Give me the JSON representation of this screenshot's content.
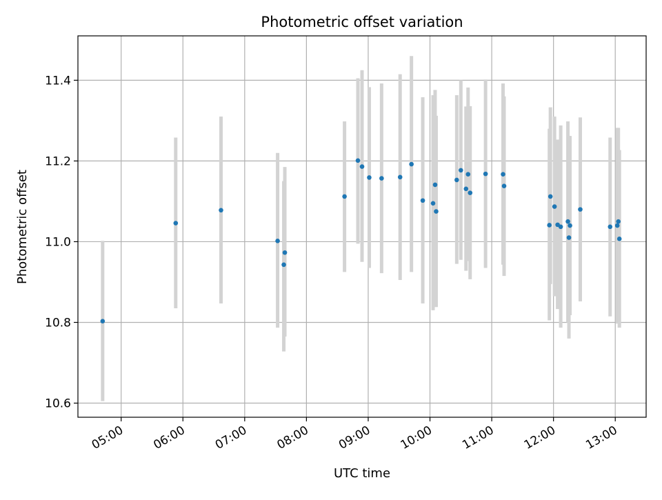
{
  "chart_data": {
    "type": "scatter",
    "title": "Photometric offset variation",
    "xlabel": "UTC time",
    "ylabel": "Photometric offset",
    "x_tick_labels": [
      "05:00",
      "06:00",
      "07:00",
      "08:00",
      "09:00",
      "10:00",
      "11:00",
      "12:00",
      "13:00"
    ],
    "x_tick_hours": [
      5,
      6,
      7,
      8,
      9,
      10,
      11,
      12,
      13
    ],
    "xlim_hours": [
      4.3,
      13.5
    ],
    "y_tick_labels": [
      "10.6",
      "10.8",
      "11.0",
      "11.2",
      "11.4"
    ],
    "y_ticks": [
      10.6,
      10.8,
      11.0,
      11.2,
      11.4
    ],
    "ylim": [
      10.565,
      11.51
    ],
    "grid": true,
    "legend": "none",
    "series": [
      {
        "marker_color": "#1f77b4",
        "errorbar_color": "#d3d3d3",
        "points": [
          {
            "time": "04:42",
            "y": 10.803,
            "lo": 10.605,
            "hi": 11.002
          },
          {
            "time": "05:53",
            "y": 11.046,
            "lo": 10.835,
            "hi": 11.258
          },
          {
            "time": "06:37",
            "y": 11.078,
            "lo": 10.847,
            "hi": 11.31
          },
          {
            "time": "07:32",
            "y": 11.002,
            "lo": 10.787,
            "hi": 11.22
          },
          {
            "time": "07:38",
            "y": 10.943,
            "lo": 10.728,
            "hi": 11.15
          },
          {
            "time": "07:39",
            "y": 10.973,
            "lo": 10.765,
            "hi": 11.185
          },
          {
            "time": "08:37",
            "y": 11.112,
            "lo": 10.925,
            "hi": 11.298
          },
          {
            "time": "08:50",
            "y": 11.201,
            "lo": 10.995,
            "hi": 11.405
          },
          {
            "time": "08:54",
            "y": 11.186,
            "lo": 10.95,
            "hi": 11.425
          },
          {
            "time": "09:01",
            "y": 11.159,
            "lo": 10.935,
            "hi": 11.383
          },
          {
            "time": "09:13",
            "y": 11.157,
            "lo": 10.922,
            "hi": 11.392
          },
          {
            "time": "09:31",
            "y": 11.16,
            "lo": 10.905,
            "hi": 11.415
          },
          {
            "time": "09:42",
            "y": 11.192,
            "lo": 10.925,
            "hi": 11.46
          },
          {
            "time": "09:53",
            "y": 11.102,
            "lo": 10.847,
            "hi": 11.358
          },
          {
            "time": "10:03",
            "y": 11.095,
            "lo": 10.83,
            "hi": 11.363
          },
          {
            "time": "10:05",
            "y": 11.141,
            "lo": 10.872,
            "hi": 11.376
          },
          {
            "time": "10:06",
            "y": 11.075,
            "lo": 10.838,
            "hi": 11.312
          },
          {
            "time": "10:26",
            "y": 11.153,
            "lo": 10.945,
            "hi": 11.363
          },
          {
            "time": "10:30",
            "y": 11.177,
            "lo": 10.955,
            "hi": 11.4
          },
          {
            "time": "10:35",
            "y": 11.131,
            "lo": 10.928,
            "hi": 11.335
          },
          {
            "time": "10:37",
            "y": 11.167,
            "lo": 10.952,
            "hi": 11.382
          },
          {
            "time": "10:39",
            "y": 11.121,
            "lo": 10.907,
            "hi": 11.336
          },
          {
            "time": "10:54",
            "y": 11.168,
            "lo": 10.935,
            "hi": 11.402
          },
          {
            "time": "11:11",
            "y": 11.167,
            "lo": 10.943,
            "hi": 11.392
          },
          {
            "time": "11:12",
            "y": 11.138,
            "lo": 10.915,
            "hi": 11.36
          },
          {
            "time": "11:56",
            "y": 11.041,
            "lo": 10.805,
            "hi": 11.28
          },
          {
            "time": "11:57",
            "y": 11.112,
            "lo": 10.895,
            "hi": 11.333
          },
          {
            "time": "12:01",
            "y": 11.087,
            "lo": 10.865,
            "hi": 11.31
          },
          {
            "time": "12:04",
            "y": 11.042,
            "lo": 10.833,
            "hi": 11.253
          },
          {
            "time": "12:07",
            "y": 11.037,
            "lo": 10.787,
            "hi": 11.288
          },
          {
            "time": "12:14",
            "y": 11.05,
            "lo": 10.8,
            "hi": 11.298
          },
          {
            "time": "12:15",
            "y": 11.01,
            "lo": 10.76,
            "hi": 11.262
          },
          {
            "time": "12:16",
            "y": 11.04,
            "lo": 10.818,
            "hi": 11.262
          },
          {
            "time": "12:26",
            "y": 11.08,
            "lo": 10.852,
            "hi": 11.308
          },
          {
            "time": "12:55",
            "y": 11.037,
            "lo": 10.815,
            "hi": 11.258
          },
          {
            "time": "13:02",
            "y": 11.04,
            "lo": 10.797,
            "hi": 11.282
          },
          {
            "time": "13:03",
            "y": 11.05,
            "lo": 10.818,
            "hi": 11.282
          },
          {
            "time": "13:04",
            "y": 11.007,
            "lo": 10.787,
            "hi": 11.227
          }
        ]
      }
    ]
  }
}
